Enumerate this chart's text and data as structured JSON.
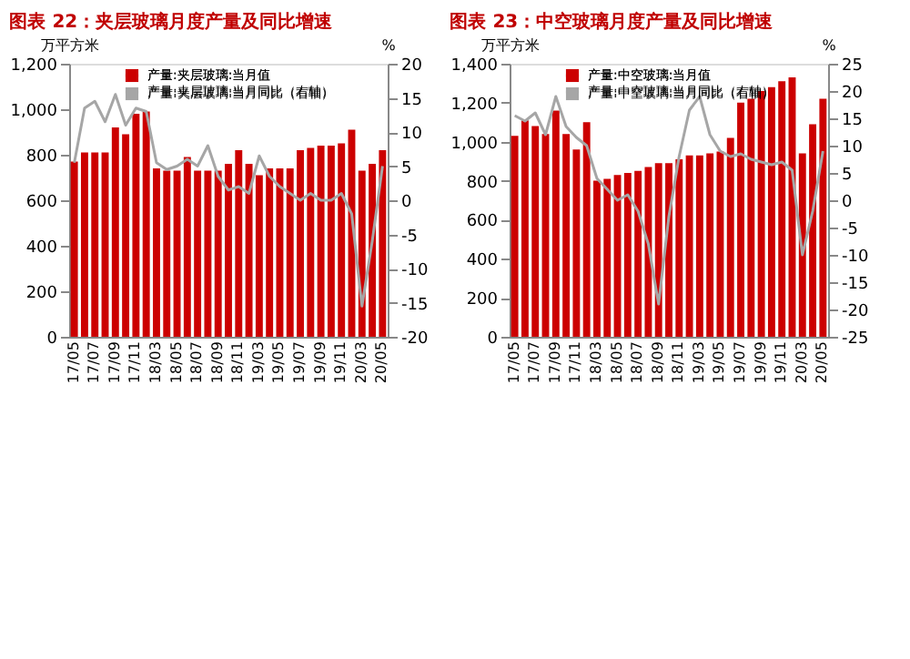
{
  "chart_data": [
    {
      "type": "bar",
      "title": "图表 22：夹层玻璃月度产量及同比增速",
      "ylabel": "万平方米",
      "y2label": "%",
      "categories": [
        "17/05",
        null,
        "17/07",
        null,
        "17/09",
        null,
        "17/11",
        null,
        "18/03",
        null,
        "18/05",
        null,
        "18/07",
        null,
        "18/09",
        null,
        "18/11",
        null,
        "19/03",
        null,
        "19/05",
        null,
        "19/07",
        null,
        "19/09",
        null,
        "19/11",
        null,
        "20/03",
        null,
        "20/05"
      ],
      "series": [
        {
          "name": "产量:夹层玻璃:当月值",
          "color": "#cc0000",
          "values": [
            770,
            810,
            810,
            810,
            920,
            890,
            980,
            990,
            740,
            730,
            730,
            790,
            730,
            730,
            730,
            760,
            820,
            760,
            710,
            740,
            740,
            740,
            820,
            830,
            840,
            840,
            850,
            910,
            730,
            760,
            820
          ]
        },
        {
          "name": "产量:夹层玻璃:当月同比（右轴）",
          "type": "line",
          "axis": "y2",
          "color": "#a6a6a6",
          "values": [
            5.5,
            13.5,
            14.5,
            11.5,
            15.5,
            11,
            13.5,
            13,
            5.5,
            4.5,
            5,
            6,
            5,
            8,
            3.5,
            1.5,
            2,
            1,
            6.5,
            3.5,
            2,
            1,
            0,
            1,
            0,
            0,
            1,
            -2,
            -15.5,
            -6,
            5
          ]
        }
      ],
      "ylim": [
        0,
        1200
      ],
      "yticks": [
        0,
        200,
        400,
        600,
        800,
        {
          "value": 1000,
          "label": "1,000"
        },
        {
          "value": 1200,
          "label": "1,200"
        }
      ],
      "y2lim": [
        -20,
        20
      ],
      "y2ticks": [
        -20,
        -15,
        -10,
        -5,
        0,
        5,
        10,
        15,
        20
      ],
      "legend": "top"
    },
    {
      "type": "bar",
      "title": "图表 23：中空玻璃月度产量及同比增速",
      "ylabel": "万平方米",
      "y2label": "%",
      "categories": [
        "17/05",
        null,
        "17/07",
        null,
        "17/09",
        null,
        "17/11",
        null,
        "18/03",
        null,
        "18/05",
        null,
        "18/07",
        null,
        "18/09",
        null,
        "18/11",
        null,
        "19/03",
        null,
        "19/05",
        null,
        "19/07",
        null,
        "19/09",
        null,
        "19/11",
        null,
        "20/03",
        null,
        "20/05"
      ],
      "series": [
        {
          "name": "产量:中空玻璃:当月值",
          "color": "#cc0000",
          "values": [
            1030,
            1110,
            1080,
            1040,
            1160,
            1040,
            960,
            1100,
            800,
            810,
            830,
            840,
            850,
            870,
            890,
            890,
            910,
            930,
            930,
            940,
            950,
            1020,
            1200,
            1220,
            1260,
            1280,
            1310,
            1330,
            940,
            1090,
            1220
          ]
        },
        {
          "name": "产量:中空玻璃:当月同比（右轴）",
          "type": "line",
          "axis": "y2",
          "color": "#a6a6a6",
          "values": [
            15.5,
            14.5,
            16,
            12,
            19,
            13.5,
            11.5,
            10,
            4,
            2,
            0,
            1,
            -2,
            -8,
            -19,
            -3,
            8,
            16.5,
            19,
            12,
            9,
            8,
            8.5,
            7.5,
            7,
            6.5,
            7,
            5.5,
            -10,
            -2,
            9
          ]
        }
      ],
      "ylim": [
        0,
        1400
      ],
      "yticks": [
        0,
        200,
        400,
        600,
        800,
        {
          "value": 1000,
          "label": "1,000"
        },
        {
          "value": 1200,
          "label": "1,200"
        },
        {
          "value": 1400,
          "label": "1,400"
        }
      ],
      "y2lim": [
        -25,
        25
      ],
      "y2ticks": [
        -25,
        -20,
        -15,
        -10,
        -5,
        0,
        5,
        10,
        15,
        20,
        25
      ],
      "legend": "top"
    }
  ]
}
